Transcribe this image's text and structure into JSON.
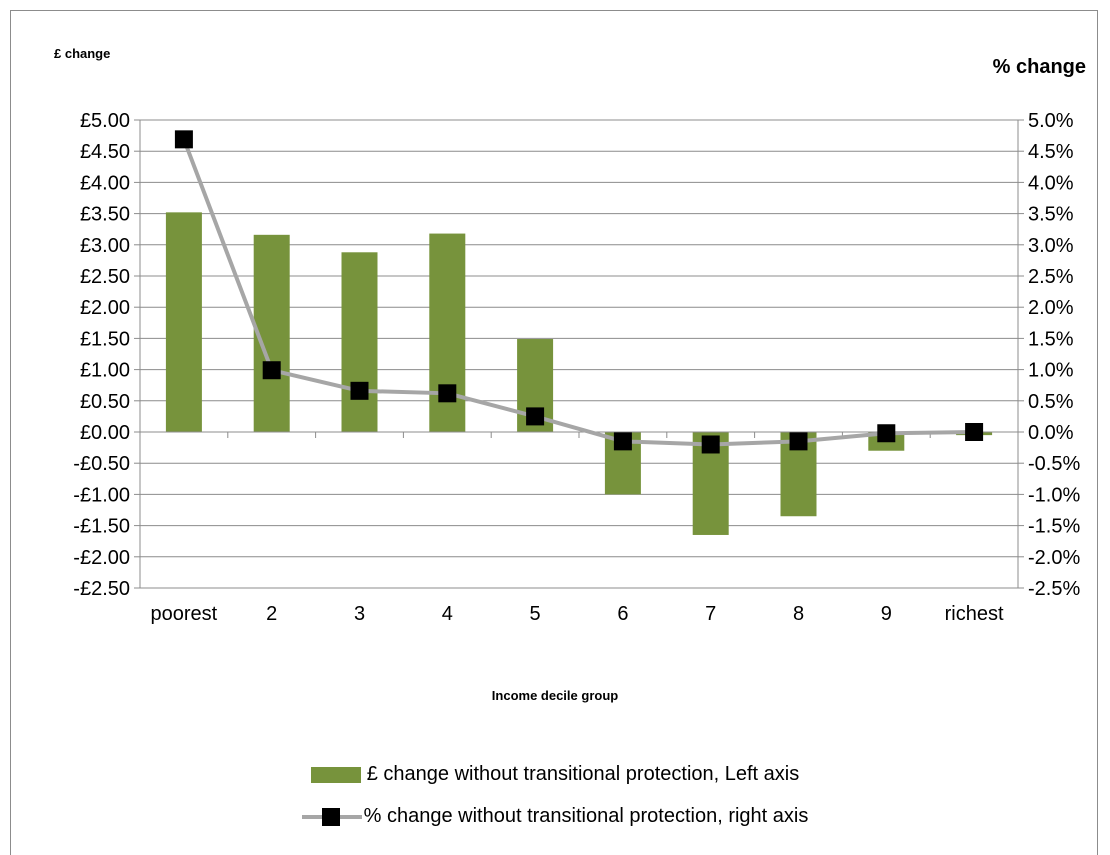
{
  "chart_data": {
    "type": "bar",
    "xlabel": "Income decile group",
    "categories": [
      "poorest",
      "2",
      "3",
      "4",
      "5",
      "6",
      "7",
      "8",
      "9",
      "richest"
    ],
    "left_axis": {
      "title": "£ change",
      "ylim": [
        -2.5,
        5.0
      ],
      "ticks": [
        "£5.00",
        "£4.50",
        "£4.00",
        "£3.50",
        "£3.00",
        "£2.50",
        "£2.00",
        "£1.50",
        "£1.00",
        "£0.50",
        "£0.00",
        "-£0.50",
        "-£1.00",
        "-£1.50",
        "-£2.00",
        "-£2.50"
      ],
      "tick_values": [
        5.0,
        4.5,
        4.0,
        3.5,
        3.0,
        2.5,
        2.0,
        1.5,
        1.0,
        0.5,
        0.0,
        -0.5,
        -1.0,
        -1.5,
        -2.0,
        -2.5
      ]
    },
    "right_axis": {
      "title": "% change",
      "ylim": [
        -2.5,
        5.0
      ],
      "ticks": [
        "5.0%",
        "4.5%",
        "4.0%",
        "3.5%",
        "3.0%",
        "2.5%",
        "2.0%",
        "1.5%",
        "1.0%",
        "0.5%",
        "0.0%",
        "-0.5%",
        "-1.0%",
        "-1.5%",
        "-2.0%",
        "-2.5%"
      ],
      "tick_values": [
        5.0,
        4.5,
        4.0,
        3.5,
        3.0,
        2.5,
        2.0,
        1.5,
        1.0,
        0.5,
        0.0,
        -0.5,
        -1.0,
        -1.5,
        -2.0,
        -2.5
      ]
    },
    "series": [
      {
        "name": "£ change without transitional protection, Left axis",
        "type": "bar",
        "axis": "left",
        "color": "#77933c",
        "values": [
          3.52,
          3.16,
          2.88,
          3.18,
          1.49,
          -1.0,
          -1.65,
          -1.35,
          -0.3,
          -0.05
        ]
      },
      {
        "name": "% change without transitional protection, right axis",
        "type": "line",
        "axis": "right",
        "color": "#a6a6a6",
        "marker_color": "#000000",
        "values": [
          4.69,
          0.99,
          0.66,
          0.62,
          0.25,
          -0.15,
          -0.2,
          -0.15,
          -0.02,
          0.0
        ]
      }
    ],
    "grid": true,
    "legend_position": "bottom"
  }
}
